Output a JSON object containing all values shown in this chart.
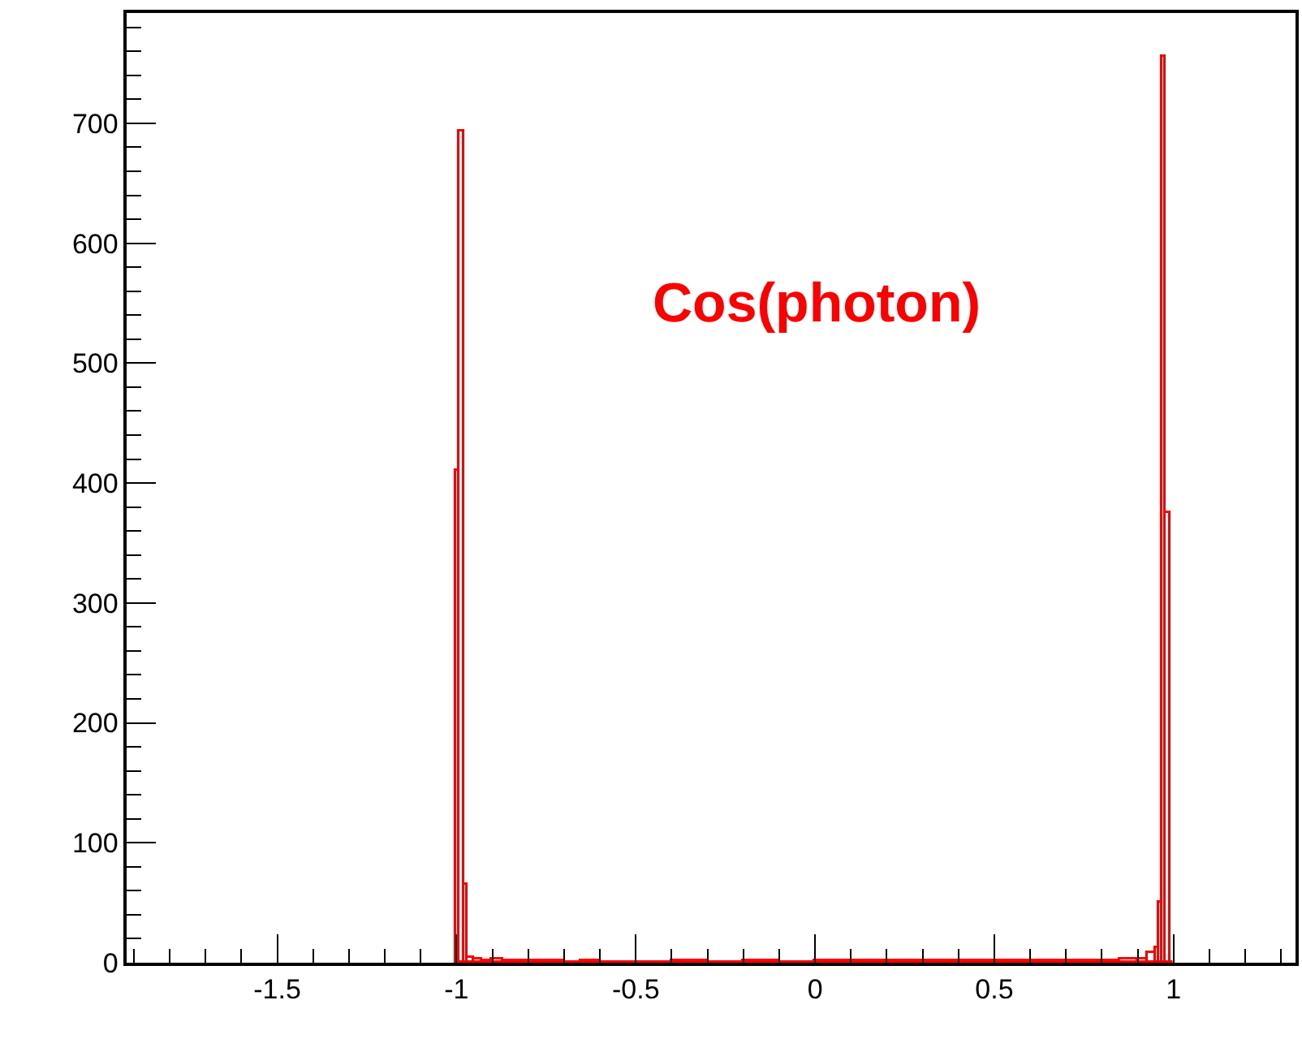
{
  "chart_data": {
    "type": "histogram",
    "annotations": [
      "Cos(photon)"
    ],
    "bins": [
      -1.0,
      -0.99,
      -0.98,
      -0.97,
      -0.95,
      -0.93,
      -0.9,
      -0.87,
      -0.85,
      -0.8,
      -0.7,
      -0.65,
      -0.6,
      -0.4,
      -0.3,
      -0.2,
      -0.1,
      0.0,
      0.1,
      0.2,
      0.3,
      0.4,
      0.5,
      0.6,
      0.7,
      0.8,
      0.85,
      0.9,
      0.93,
      0.95,
      0.96,
      0.97,
      0.98,
      0.99,
      1.0
    ],
    "values": [
      410,
      693,
      65,
      4,
      3,
      2,
      3,
      1,
      2,
      1,
      0,
      1,
      0,
      1,
      0,
      1,
      0,
      1,
      1,
      1,
      2,
      1,
      1,
      1,
      1,
      2,
      3,
      3,
      8,
      12,
      50,
      755,
      375,
      0
    ],
    "color": "#ff0000",
    "xlim": [
      -1.92,
      1.34
    ],
    "xticks": [
      -1.5,
      -1,
      -0.5,
      0,
      0.5,
      1
    ],
    "ylim": [
      0,
      792
    ],
    "yticks": [
      0,
      100,
      200,
      300,
      400,
      500,
      600,
      700
    ]
  }
}
